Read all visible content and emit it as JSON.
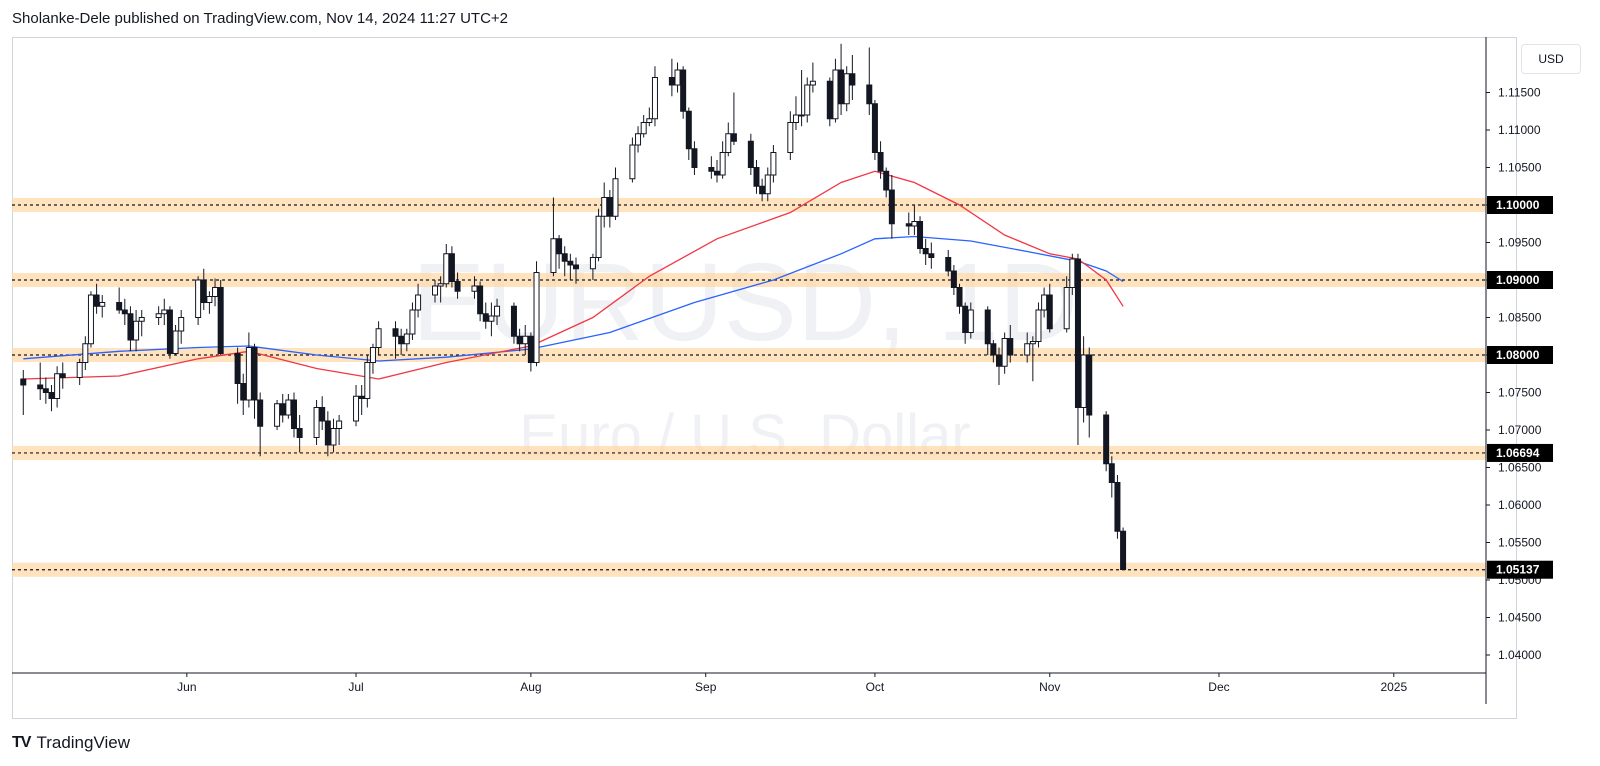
{
  "header": {
    "text": "Sholanke-Dele published on TradingView.com, Nov 14, 2024 11:27 UTC+2"
  },
  "currency_button": {
    "label": "USD"
  },
  "brand": {
    "logo": "TV",
    "name": "TradingView"
  },
  "watermark": {
    "symbol": "EURUSD, 1D",
    "description": "Euro / U.S. Dollar"
  },
  "colors": {
    "ema_fast": "#f23645",
    "ema_slow": "#2962ff",
    "level_band": "#ffd8a8",
    "level_tag": "#000000"
  },
  "chart_data": {
    "type": "candlestick",
    "symbol": "EURUSD",
    "timeframe": "1D",
    "ylim": [
      1.04,
      1.12
    ],
    "y_ticks": [
      1.04,
      1.045,
      1.05,
      1.055,
      1.06,
      1.065,
      1.07,
      1.075,
      1.08,
      1.085,
      1.09,
      1.095,
      1.1,
      1.105,
      1.11,
      1.115
    ],
    "y_tick_labels": [
      "1.04000",
      "1.04500",
      "1.05000",
      "1.05500",
      "1.06000",
      "1.06500",
      "1.07000",
      "1.07500",
      "1.08000",
      "1.08500",
      "1.09000",
      "1.09500",
      "1.10000",
      "1.10500",
      "1.11000",
      "1.11500"
    ],
    "x_ticks": [
      {
        "label": "Jun",
        "date": "2024-06-01"
      },
      {
        "label": "Jul",
        "date": "2024-07-01"
      },
      {
        "label": "Aug",
        "date": "2024-08-01"
      },
      {
        "label": "Sep",
        "date": "2024-09-01"
      },
      {
        "label": "Oct",
        "date": "2024-10-01"
      },
      {
        "label": "Nov",
        "date": "2024-11-01"
      },
      {
        "label": "Dec",
        "date": "2024-12-01"
      },
      {
        "label": "2025",
        "date": "2025-01-01"
      }
    ],
    "levels": [
      {
        "value": 1.1,
        "label": "1.10000"
      },
      {
        "value": 1.09,
        "label": "1.09000"
      },
      {
        "value": 1.08,
        "label": "1.08000"
      },
      {
        "value": 1.06694,
        "label": "1.06694"
      },
      {
        "value": 1.05137,
        "label": "1.05137"
      }
    ],
    "ema_fast": [
      [
        "2024-05-03",
        1.0768
      ],
      [
        "2024-05-20",
        1.0772
      ],
      [
        "2024-06-03",
        1.0795
      ],
      [
        "2024-06-12",
        1.0805
      ],
      [
        "2024-06-24",
        1.0782
      ],
      [
        "2024-07-05",
        1.0768
      ],
      [
        "2024-07-17",
        1.079
      ],
      [
        "2024-08-01",
        1.0812
      ],
      [
        "2024-08-12",
        1.085
      ],
      [
        "2024-08-22",
        1.0905
      ],
      [
        "2024-09-03",
        1.0955
      ],
      [
        "2024-09-16",
        1.099
      ],
      [
        "2024-09-25",
        1.103
      ],
      [
        "2024-10-01",
        1.1045
      ],
      [
        "2024-10-08",
        1.103
      ],
      [
        "2024-10-16",
        1.1
      ],
      [
        "2024-10-24",
        1.096
      ],
      [
        "2024-11-01",
        1.0935
      ],
      [
        "2024-11-06",
        1.0928
      ],
      [
        "2024-11-11",
        1.09
      ],
      [
        "2024-11-14",
        1.0865
      ]
    ],
    "ema_slow": [
      [
        "2024-05-03",
        1.0795
      ],
      [
        "2024-05-20",
        1.0805
      ],
      [
        "2024-06-03",
        1.081
      ],
      [
        "2024-06-12",
        1.0812
      ],
      [
        "2024-06-24",
        1.08
      ],
      [
        "2024-07-05",
        1.0792
      ],
      [
        "2024-07-17",
        1.0797
      ],
      [
        "2024-08-01",
        1.0808
      ],
      [
        "2024-08-15",
        1.083
      ],
      [
        "2024-08-30",
        1.087
      ],
      [
        "2024-09-13",
        1.09
      ],
      [
        "2024-09-25",
        1.0935
      ],
      [
        "2024-10-01",
        1.0955
      ],
      [
        "2024-10-08",
        1.0958
      ],
      [
        "2024-10-18",
        1.0952
      ],
      [
        "2024-10-28",
        1.0938
      ],
      [
        "2024-11-06",
        1.0925
      ],
      [
        "2024-11-11",
        1.0912
      ],
      [
        "2024-11-14",
        1.0898
      ]
    ],
    "candles": [
      [
        "2024-05-03",
        1.0768,
        1.078,
        1.072,
        1.076
      ],
      [
        "2024-05-06",
        1.076,
        1.079,
        1.074,
        1.0755
      ],
      [
        "2024-05-07",
        1.0755,
        1.077,
        1.0735,
        1.075
      ],
      [
        "2024-05-08",
        1.075,
        1.076,
        1.0725,
        1.0742
      ],
      [
        "2024-05-09",
        1.0742,
        1.0785,
        1.073,
        1.0775
      ],
      [
        "2024-05-10",
        1.0775,
        1.079,
        1.0755,
        1.077
      ],
      [
        "2024-05-13",
        1.077,
        1.0795,
        1.076,
        1.079
      ],
      [
        "2024-05-14",
        1.079,
        1.0825,
        1.078,
        1.0815
      ],
      [
        "2024-05-15",
        1.0815,
        1.0885,
        1.081,
        1.088
      ],
      [
        "2024-05-16",
        1.088,
        1.0895,
        1.0855,
        1.0865
      ],
      [
        "2024-05-17",
        1.0865,
        1.088,
        1.085,
        1.087
      ],
      [
        "2024-05-20",
        1.087,
        1.089,
        1.0855,
        1.086
      ],
      [
        "2024-05-21",
        1.086,
        1.0875,
        1.084,
        1.0855
      ],
      [
        "2024-05-22",
        1.0855,
        1.0865,
        1.0805,
        1.082
      ],
      [
        "2024-05-23",
        1.082,
        1.086,
        1.0805,
        1.0845
      ],
      [
        "2024-05-24",
        1.0845,
        1.086,
        1.0825,
        1.085
      ],
      [
        "2024-05-27",
        1.085,
        1.0865,
        1.084,
        1.0855
      ],
      [
        "2024-05-28",
        1.0855,
        1.0875,
        1.084,
        1.086
      ],
      [
        "2024-05-29",
        1.086,
        1.0865,
        1.0795,
        1.0802
      ],
      [
        "2024-05-30",
        1.0802,
        1.084,
        1.08,
        1.0832
      ],
      [
        "2024-05-31",
        1.0832,
        1.086,
        1.0815,
        1.085
      ],
      [
        "2024-06-03",
        1.085,
        1.0905,
        1.084,
        1.09
      ],
      [
        "2024-06-04",
        1.09,
        1.0915,
        1.086,
        1.087
      ],
      [
        "2024-06-05",
        1.087,
        1.0885,
        1.0855,
        1.0878
      ],
      [
        "2024-06-06",
        1.0878,
        1.0902,
        1.0865,
        1.089
      ],
      [
        "2024-06-07",
        1.089,
        1.09,
        1.08,
        1.0802
      ],
      [
        "2024-06-10",
        1.0802,
        1.081,
        1.0735,
        1.0762
      ],
      [
        "2024-06-11",
        1.0762,
        1.0775,
        1.072,
        1.074
      ],
      [
        "2024-06-12",
        1.074,
        1.083,
        1.073,
        1.081
      ],
      [
        "2024-06-13",
        1.081,
        1.0815,
        1.0715,
        1.074
      ],
      [
        "2024-06-14",
        1.074,
        1.075,
        1.0665,
        1.0705
      ],
      [
        "2024-06-17",
        1.0705,
        1.074,
        1.07,
        1.0735
      ],
      [
        "2024-06-18",
        1.0735,
        1.0748,
        1.071,
        1.072
      ],
      [
        "2024-06-19",
        1.072,
        1.0748,
        1.0715,
        1.074
      ],
      [
        "2024-06-20",
        1.074,
        1.075,
        1.069,
        1.0702
      ],
      [
        "2024-06-21",
        1.0702,
        1.072,
        1.067,
        1.069
      ],
      [
        "2024-06-24",
        1.069,
        1.074,
        1.068,
        1.073
      ],
      [
        "2024-06-25",
        1.073,
        1.0745,
        1.07,
        1.0712
      ],
      [
        "2024-06-26",
        1.0712,
        1.0725,
        1.0665,
        1.068
      ],
      [
        "2024-06-27",
        1.068,
        1.0715,
        1.067,
        1.0702
      ],
      [
        "2024-06-28",
        1.0702,
        1.072,
        1.068,
        1.0712
      ],
      [
        "2024-07-01",
        1.0712,
        1.076,
        1.0705,
        1.0745
      ],
      [
        "2024-07-02",
        1.0745,
        1.076,
        1.072,
        1.0742
      ],
      [
        "2024-07-03",
        1.0742,
        1.08,
        1.073,
        1.079
      ],
      [
        "2024-07-04",
        1.079,
        1.0815,
        1.0775,
        1.081
      ],
      [
        "2024-07-05",
        1.081,
        1.0845,
        1.08,
        1.0835
      ],
      [
        "2024-07-08",
        1.0835,
        1.0845,
        1.0795,
        1.0825
      ],
      [
        "2024-07-09",
        1.0825,
        1.0835,
        1.08,
        1.0815
      ],
      [
        "2024-07-10",
        1.0815,
        1.0835,
        1.0805,
        1.0828
      ],
      [
        "2024-07-11",
        1.0828,
        1.087,
        1.082,
        1.086
      ],
      [
        "2024-07-12",
        1.086,
        1.0895,
        1.085,
        1.088
      ],
      [
        "2024-07-15",
        1.088,
        1.09,
        1.087,
        1.0892
      ],
      [
        "2024-07-16",
        1.0892,
        1.0905,
        1.087,
        1.0895
      ],
      [
        "2024-07-17",
        1.0895,
        1.0948,
        1.089,
        1.0935
      ],
      [
        "2024-07-18",
        1.0935,
        1.0945,
        1.089,
        1.0898
      ],
      [
        "2024-07-19",
        1.0898,
        1.091,
        1.0875,
        1.0885
      ],
      [
        "2024-07-22",
        1.0885,
        1.0905,
        1.0875,
        1.0892
      ],
      [
        "2024-07-23",
        1.0892,
        1.0898,
        1.0845,
        1.0855
      ],
      [
        "2024-07-24",
        1.0855,
        1.087,
        1.0835,
        1.0845
      ],
      [
        "2024-07-25",
        1.0845,
        1.087,
        1.0825,
        1.0852
      ],
      [
        "2024-07-26",
        1.0852,
        1.0875,
        1.084,
        1.0865
      ],
      [
        "2024-07-29",
        1.0865,
        1.087,
        1.0815,
        1.0825
      ],
      [
        "2024-07-30",
        1.0825,
        1.0835,
        1.0805,
        1.0815
      ],
      [
        "2024-07-31",
        1.0815,
        1.084,
        1.08,
        1.0825
      ],
      [
        "2024-08-01",
        1.0825,
        1.083,
        1.0778,
        1.079
      ],
      [
        "2024-08-02",
        1.079,
        1.0925,
        1.0785,
        1.091
      ],
      [
        "2024-08-05",
        1.091,
        1.101,
        1.0905,
        1.0955
      ],
      [
        "2024-08-06",
        1.0955,
        1.096,
        1.0915,
        1.0935
      ],
      [
        "2024-08-07",
        1.0935,
        1.0945,
        1.0905,
        1.0925
      ],
      [
        "2024-08-08",
        1.0925,
        1.0935,
        1.09,
        1.092
      ],
      [
        "2024-08-09",
        1.092,
        1.093,
        1.0895,
        1.0915
      ],
      [
        "2024-08-12",
        1.0915,
        1.0935,
        1.09,
        1.093
      ],
      [
        "2024-08-13",
        1.093,
        1.0995,
        1.0925,
        1.0985
      ],
      [
        "2024-08-14",
        1.0985,
        1.103,
        1.097,
        1.101
      ],
      [
        "2024-08-15",
        1.101,
        1.102,
        1.097,
        1.0985
      ],
      [
        "2024-08-16",
        1.0985,
        1.105,
        1.098,
        1.1035
      ],
      [
        "2024-08-19",
        1.1035,
        1.109,
        1.103,
        1.108
      ],
      [
        "2024-08-20",
        1.108,
        1.1105,
        1.107,
        1.1095
      ],
      [
        "2024-08-21",
        1.1095,
        1.112,
        1.109,
        1.111
      ],
      [
        "2024-08-22",
        1.111,
        1.113,
        1.1105,
        1.1115
      ],
      [
        "2024-08-23",
        1.1115,
        1.1185,
        1.1105,
        1.117
      ],
      [
        "2024-08-26",
        1.117,
        1.1195,
        1.1145,
        1.116
      ],
      [
        "2024-08-27",
        1.116,
        1.119,
        1.115,
        1.118
      ],
      [
        "2024-08-28",
        1.118,
        1.1185,
        1.1115,
        1.1125
      ],
      [
        "2024-08-29",
        1.1125,
        1.113,
        1.106,
        1.1075
      ],
      [
        "2024-08-30",
        1.1075,
        1.1085,
        1.104,
        1.105
      ],
      [
        "2024-09-02",
        1.105,
        1.1065,
        1.1035,
        1.1045
      ],
      [
        "2024-09-03",
        1.1045,
        1.106,
        1.103,
        1.104
      ],
      [
        "2024-09-04",
        1.104,
        1.1085,
        1.1035,
        1.107
      ],
      [
        "2024-09-05",
        1.107,
        1.111,
        1.1065,
        1.1095
      ],
      [
        "2024-09-06",
        1.1095,
        1.115,
        1.108,
        1.1085
      ],
      [
        "2024-09-09",
        1.1085,
        1.1095,
        1.104,
        1.105
      ],
      [
        "2024-09-10",
        1.105,
        1.106,
        1.1015,
        1.1025
      ],
      [
        "2024-09-11",
        1.1025,
        1.1035,
        1.1005,
        1.1015
      ],
      [
        "2024-09-12",
        1.1015,
        1.105,
        1.1005,
        1.104
      ],
      [
        "2024-09-13",
        1.104,
        1.108,
        1.103,
        1.107
      ],
      [
        "2024-09-16",
        1.107,
        1.1125,
        1.106,
        1.111
      ],
      [
        "2024-09-17",
        1.111,
        1.1145,
        1.11,
        1.112
      ],
      [
        "2024-09-18",
        1.112,
        1.118,
        1.1105,
        1.112
      ],
      [
        "2024-09-19",
        1.112,
        1.117,
        1.111,
        1.116
      ],
      [
        "2024-09-20",
        1.116,
        1.119,
        1.115,
        1.1165
      ],
      [
        "2024-09-23",
        1.1165,
        1.117,
        1.1105,
        1.1115
      ],
      [
        "2024-09-24",
        1.1115,
        1.1195,
        1.111,
        1.118
      ],
      [
        "2024-09-25",
        1.118,
        1.1215,
        1.112,
        1.1135
      ],
      [
        "2024-09-26",
        1.1135,
        1.1185,
        1.1125,
        1.1175
      ],
      [
        "2024-09-27",
        1.1175,
        1.12,
        1.114,
        1.116
      ],
      [
        "2024-09-30",
        1.116,
        1.121,
        1.112,
        1.1135
      ],
      [
        "2024-10-01",
        1.1135,
        1.114,
        1.106,
        1.107
      ],
      [
        "2024-10-02",
        1.107,
        1.1085,
        1.1035,
        1.1045
      ],
      [
        "2024-10-03",
        1.1045,
        1.105,
        1.101,
        1.102
      ],
      [
        "2024-10-04",
        1.102,
        1.104,
        1.0955,
        1.0975
      ],
      [
        "2024-10-07",
        1.0975,
        1.099,
        1.096,
        1.0972
      ],
      [
        "2024-10-08",
        1.0972,
        1.1,
        1.096,
        1.0978
      ],
      [
        "2024-10-09",
        1.0978,
        1.0985,
        1.0935,
        1.0942
      ],
      [
        "2024-10-10",
        1.0942,
        1.0955,
        1.092,
        1.0935
      ],
      [
        "2024-10-11",
        1.0935,
        1.095,
        1.0915,
        1.093
      ],
      [
        "2024-10-14",
        1.093,
        1.094,
        1.0905,
        1.0912
      ],
      [
        "2024-10-15",
        1.0912,
        1.092,
        1.088,
        1.089
      ],
      [
        "2024-10-16",
        1.089,
        1.0895,
        1.0855,
        1.0865
      ],
      [
        "2024-10-17",
        1.0865,
        1.087,
        1.0815,
        1.083
      ],
      [
        "2024-10-18",
        1.083,
        1.087,
        1.0822,
        1.086
      ],
      [
        "2024-10-21",
        1.086,
        1.0865,
        1.08,
        1.0815
      ],
      [
        "2024-10-22",
        1.0815,
        1.082,
        1.079,
        1.08
      ],
      [
        "2024-10-23",
        1.08,
        1.081,
        1.076,
        1.0785
      ],
      [
        "2024-10-24",
        1.0785,
        1.083,
        1.0775,
        1.0822
      ],
      [
        "2024-10-25",
        1.0822,
        1.084,
        1.079,
        1.08
      ],
      [
        "2024-10-28",
        1.08,
        1.083,
        1.079,
        1.0815
      ],
      [
        "2024-10-29",
        1.0815,
        1.0825,
        1.0765,
        1.0818
      ],
      [
        "2024-10-30",
        1.0818,
        1.087,
        1.081,
        1.086
      ],
      [
        "2024-10-31",
        1.086,
        1.089,
        1.085,
        1.088
      ],
      [
        "2024-11-01",
        1.088,
        1.0895,
        1.083,
        1.0835
      ],
      [
        "2024-11-04",
        1.0835,
        1.0905,
        1.083,
        1.089
      ],
      [
        "2024-11-05",
        1.089,
        1.0935,
        1.088,
        1.0928
      ],
      [
        "2024-11-06",
        1.0928,
        1.0935,
        1.068,
        1.073
      ],
      [
        "2024-11-07",
        1.073,
        1.0825,
        1.071,
        1.08
      ],
      [
        "2024-11-08",
        1.08,
        1.081,
        1.069,
        1.072
      ],
      [
        "2024-11-11",
        1.072,
        1.0725,
        1.0645,
        1.0655
      ],
      [
        "2024-11-12",
        1.0655,
        1.0665,
        1.061,
        1.063
      ],
      [
        "2024-11-13",
        1.063,
        1.064,
        1.0555,
        1.0565
      ],
      [
        "2024-11-14",
        1.0565,
        1.057,
        1.0514,
        1.0514
      ]
    ]
  }
}
